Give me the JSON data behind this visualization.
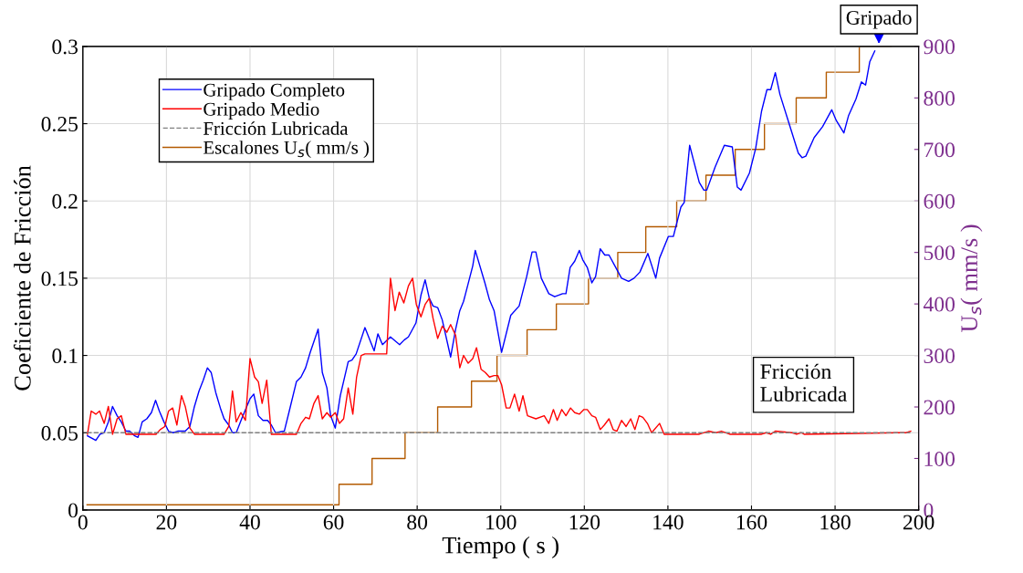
{
  "chart_data": {
    "type": "line",
    "xlabel": "Tiempo ( s )",
    "ylabel": "Coeficiente de Fricción",
    "y2label": "U$_{s}$( mm/s )",
    "xlim": [
      0,
      200
    ],
    "xticks": [
      0,
      20,
      40,
      60,
      80,
      100,
      120,
      140,
      160,
      180,
      200
    ],
    "ylim": [
      0,
      0.3
    ],
    "yticks": [
      0,
      0.05,
      0.1,
      0.15,
      0.2,
      0.25,
      0.3
    ],
    "y2lim": [
      0,
      900
    ],
    "y2ticks": [
      0,
      100,
      200,
      300,
      400,
      500,
      600,
      700,
      800,
      900
    ],
    "grid": true,
    "legend": "top left",
    "series": [
      {
        "name": "Gripado Completo",
        "color": "#0000ff",
        "x": [
          1.1,
          3.1,
          4.1,
          5.1,
          6.1,
          7.1,
          8.2,
          9.2,
          10.3,
          11.2,
          12.4,
          13.2,
          14.2,
          15.3,
          16.4,
          17.4,
          18.3,
          19.4,
          20.5,
          21.6,
          22.7,
          24.5,
          25.6,
          26.7,
          27.8,
          28.8,
          29.8,
          30.7,
          31.8,
          32.9,
          33.8,
          34.9,
          35.8,
          36.7,
          38,
          40,
          40.9,
          42,
          43.1,
          44.2,
          45.1,
          46.1,
          48.2,
          49.3,
          51.1,
          52.2,
          53.3,
          54.4,
          56.3,
          57.3,
          58.4,
          59.3,
          60.4,
          61.6,
          63.5,
          64.4,
          65.4,
          67.5,
          69.7,
          70.6,
          71.7,
          73.6,
          75.8,
          76.9,
          77.9,
          79.7,
          80.9,
          81.9,
          82.9,
          83.8,
          84.9,
          86,
          88,
          89.2,
          90.2,
          91.1,
          93.3,
          93.9,
          96.2,
          97.3,
          98.4,
          100.2,
          102.4,
          104.4,
          106.2,
          107.5,
          108.4,
          109.7,
          111.5,
          112.9,
          114.8,
          115.6,
          116.6,
          117.7,
          118.8,
          119.6,
          120.7,
          121.8,
          122.7,
          123.8,
          124.9,
          125.9,
          127.1,
          128.9,
          130.6,
          131.9,
          133.3,
          135.2,
          137.1,
          138,
          140.1,
          141.3,
          143.1,
          143.9,
          145.2,
          147.5,
          148.6,
          149.3,
          151.3,
          153.5,
          155.4,
          156.6,
          157.5,
          159.5,
          161,
          162.4,
          163.7,
          164.6,
          165.7,
          166.8,
          169,
          171.2,
          172.1,
          173,
          175,
          177,
          179.2,
          180.3,
          182.1,
          183.2,
          185,
          186.3,
          187.3,
          188.3,
          189.5
        ],
        "values": [
          0.048,
          0.045,
          0.049,
          0.05,
          0.057,
          0.067,
          0.061,
          0.057,
          0.051,
          0.051,
          0.048,
          0.047,
          0.057,
          0.059,
          0.063,
          0.071,
          0.064,
          0.057,
          0.051,
          0.05,
          0.051,
          0.051,
          0.054,
          0.067,
          0.077,
          0.084,
          0.092,
          0.089,
          0.076,
          0.066,
          0.059,
          0.055,
          0.05,
          0.05,
          0.059,
          0.072,
          0.075,
          0.061,
          0.058,
          0.058,
          0.055,
          0.05,
          0.051,
          0.063,
          0.083,
          0.086,
          0.092,
          0.102,
          0.117,
          0.089,
          0.079,
          0.061,
          0.053,
          0.074,
          0.096,
          0.097,
          0.101,
          0.118,
          0.103,
          0.114,
          0.107,
          0.112,
          0.107,
          0.11,
          0.112,
          0.121,
          0.139,
          0.149,
          0.137,
          0.132,
          0.131,
          0.123,
          0.099,
          0.117,
          0.129,
          0.135,
          0.158,
          0.168,
          0.147,
          0.136,
          0.129,
          0.102,
          0.126,
          0.132,
          0.151,
          0.167,
          0.167,
          0.15,
          0.14,
          0.138,
          0.14,
          0.14,
          0.157,
          0.161,
          0.168,
          0.162,
          0.157,
          0.147,
          0.151,
          0.169,
          0.165,
          0.165,
          0.159,
          0.15,
          0.148,
          0.15,
          0.154,
          0.166,
          0.15,
          0.163,
          0.177,
          0.177,
          0.196,
          0.199,
          0.236,
          0.212,
          0.207,
          0.207,
          0.222,
          0.236,
          0.235,
          0.209,
          0.207,
          0.218,
          0.234,
          0.258,
          0.272,
          0.272,
          0.283,
          0.269,
          0.25,
          0.231,
          0.228,
          0.229,
          0.241,
          0.248,
          0.259,
          0.252,
          0.244,
          0.255,
          0.266,
          0.277,
          0.275,
          0.29,
          0.297
        ]
      },
      {
        "name": "Gripado Medio",
        "color": "#ff0000",
        "x": [
          1.1,
          2.0,
          3.1,
          4.0,
          5.1,
          6.1,
          7.1,
          8.2,
          9.2,
          10.3,
          17.5,
          18.5,
          19.6,
          20.5,
          21.5,
          22.5,
          23.6,
          24.5,
          25.6,
          26.7,
          33.8,
          34.9,
          35.8,
          36.7,
          37.8,
          38.9,
          40,
          41.1,
          42,
          42.9,
          44,
          45.1,
          51.1,
          52.2,
          53.3,
          54.2,
          55.3,
          56.3,
          57.3,
          58.4,
          59.3,
          60.4,
          61.4,
          62.4,
          63.5,
          64.6,
          65.5,
          66.6,
          67.5,
          72.7,
          73.6,
          74.7,
          75.7,
          76.8,
          77.9,
          78.9,
          79.8,
          80.9,
          81.9,
          82.9,
          83.8,
          84.9,
          86,
          87.1,
          88,
          89.2,
          90.2,
          91.1,
          92.2,
          93.3,
          94.2,
          95.3,
          96.3,
          97.3,
          98.4,
          99.3,
          100.2,
          101.3,
          102.2,
          103.3,
          104.4,
          105.3,
          106.4,
          108.4,
          110.4,
          111.5,
          112.6,
          113.5,
          114.6,
          115.6,
          116.7,
          117.7,
          118.8,
          119.9,
          120.7,
          121.8,
          122.7,
          123.8,
          124.8,
          125.9,
          126.9,
          127.8,
          128.9,
          130,
          131.1,
          132.1,
          133.1,
          134,
          135.1,
          136.1,
          138,
          139.1,
          147.5,
          149.7,
          151.5,
          152.8,
          154.8,
          162.4,
          163.5,
          164.6,
          165.7,
          169.7,
          170.8,
          171.9,
          172.6,
          195.2,
          197,
          198.1
        ],
        "values": [
          0.049,
          0.064,
          0.062,
          0.064,
          0.056,
          0.067,
          0.049,
          0.059,
          0.061,
          0.049,
          0.049,
          0.052,
          0.054,
          0.064,
          0.066,
          0.055,
          0.074,
          0.067,
          0.053,
          0.049,
          0.049,
          0.054,
          0.077,
          0.057,
          0.063,
          0.058,
          0.098,
          0.086,
          0.083,
          0.069,
          0.084,
          0.049,
          0.049,
          0.056,
          0.06,
          0.059,
          0.069,
          0.074,
          0.059,
          0.063,
          0.06,
          0.063,
          0.056,
          0.059,
          0.079,
          0.062,
          0.086,
          0.1,
          0.101,
          0.101,
          0.15,
          0.129,
          0.141,
          0.134,
          0.145,
          0.15,
          0.133,
          0.125,
          0.133,
          0.137,
          0.124,
          0.111,
          0.119,
          0.115,
          0.12,
          0.113,
          0.092,
          0.1,
          0.095,
          0.098,
          0.105,
          0.091,
          0.089,
          0.086,
          0.087,
          0.087,
          0.081,
          0.066,
          0.066,
          0.075,
          0.064,
          0.074,
          0.061,
          0.059,
          0.061,
          0.056,
          0.065,
          0.058,
          0.065,
          0.061,
          0.066,
          0.063,
          0.062,
          0.065,
          0.065,
          0.061,
          0.06,
          0.052,
          0.055,
          0.059,
          0.052,
          0.051,
          0.058,
          0.054,
          0.059,
          0.052,
          0.061,
          0.06,
          0.056,
          0.05,
          0.056,
          0.049,
          0.049,
          0.051,
          0.05,
          0.051,
          0.049,
          0.049,
          0.05,
          0.049,
          0.051,
          0.05,
          0.049,
          0.05,
          0.049,
          0.05,
          0.05,
          0.051
        ]
      },
      {
        "name": "Fricción Lubricada",
        "color": "#808080",
        "line_style": "dashed",
        "x": [
          1,
          198
        ],
        "values": [
          0.05,
          0.05
        ]
      },
      {
        "name": "Escalones U$_{s}$( mm/s )",
        "color": "#b35a00",
        "type": "step",
        "axis": "y2",
        "x": [
          1,
          61.3,
          69.2,
          77.1,
          84.9,
          93.0,
          99.1,
          106.3,
          113.3,
          121,
          128,
          134.7,
          142.1,
          149.1,
          156.1,
          163.1,
          170.7,
          177.9,
          185.8,
          193.4
        ],
        "values": [
          10,
          50,
          100,
          150,
          200,
          250,
          300,
          350,
          400,
          450,
          500,
          550,
          600,
          650,
          700,
          750,
          800,
          850,
          900,
          900
        ]
      }
    ],
    "annotations": [
      {
        "text": "Gripado",
        "x": 190.5,
        "y": 0.3
      },
      "Fricción\nLubricada"
    ]
  }
}
